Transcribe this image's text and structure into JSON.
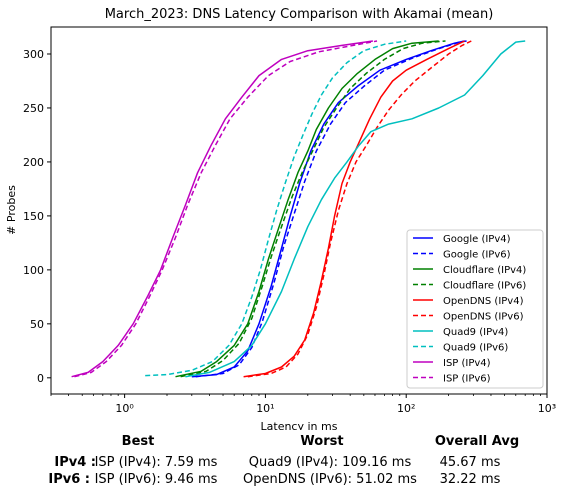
{
  "chart_data": {
    "type": "line",
    "title": "March_2023: DNS Latency Comparison with Akamai (mean)",
    "xlabel": "Latency in ms",
    "ylabel": "# Probes",
    "xscale": "log",
    "xlim": [
      0.3,
      1000
    ],
    "ylim": [
      -15,
      325
    ],
    "xticks": [
      1,
      10,
      100,
      1000
    ],
    "xtick_labels": [
      "10⁰",
      "10¹",
      "10²",
      "10³"
    ],
    "yticks": [
      0,
      50,
      100,
      150,
      200,
      250,
      300
    ],
    "grid": false,
    "legend_position": "lower-right",
    "series": [
      {
        "name": "Google (IPv4)",
        "color": "#0000ff",
        "dash": "solid",
        "points": [
          [
            3,
            1
          ],
          [
            4.5,
            3
          ],
          [
            6,
            10
          ],
          [
            7.5,
            25
          ],
          [
            9,
            50
          ],
          [
            11,
            85
          ],
          [
            13,
            120
          ],
          [
            15,
            150
          ],
          [
            17.5,
            180
          ],
          [
            21,
            210
          ],
          [
            26,
            235
          ],
          [
            33,
            255
          ],
          [
            45,
            270
          ],
          [
            65,
            285
          ],
          [
            100,
            295
          ],
          [
            150,
            303
          ],
          [
            220,
            310
          ],
          [
            260,
            312
          ]
        ]
      },
      {
        "name": "Google (IPv6)",
        "color": "#0000ff",
        "dash": "dashed",
        "points": [
          [
            3.2,
            1
          ],
          [
            5,
            4
          ],
          [
            6.5,
            12
          ],
          [
            8,
            28
          ],
          [
            9.5,
            52
          ],
          [
            11.5,
            88
          ],
          [
            13.5,
            122
          ],
          [
            16,
            152
          ],
          [
            19,
            182
          ],
          [
            23,
            210
          ],
          [
            29,
            235
          ],
          [
            37,
            255
          ],
          [
            50,
            270
          ],
          [
            70,
            285
          ],
          [
            110,
            296
          ],
          [
            170,
            305
          ],
          [
            240,
            311
          ],
          [
            270,
            312
          ]
        ]
      },
      {
        "name": "Cloudflare (IPv4)",
        "color": "#008000",
        "dash": "solid",
        "points": [
          [
            2.3,
            1
          ],
          [
            3.5,
            6
          ],
          [
            4.5,
            15
          ],
          [
            6,
            30
          ],
          [
            7.5,
            50
          ],
          [
            9,
            80
          ],
          [
            10.5,
            110
          ],
          [
            12.5,
            140
          ],
          [
            14.5,
            165
          ],
          [
            17,
            190
          ],
          [
            20,
            210
          ],
          [
            23,
            230
          ],
          [
            28,
            250
          ],
          [
            35,
            268
          ],
          [
            45,
            282
          ],
          [
            60,
            295
          ],
          [
            80,
            305
          ],
          [
            110,
            310
          ],
          [
            170,
            312
          ]
        ]
      },
      {
        "name": "Cloudflare (IPv6)",
        "color": "#008000",
        "dash": "dashed",
        "points": [
          [
            2.5,
            1
          ],
          [
            3.8,
            6
          ],
          [
            5,
            16
          ],
          [
            6.5,
            32
          ],
          [
            8,
            55
          ],
          [
            9.5,
            85
          ],
          [
            11,
            112
          ],
          [
            13,
            140
          ],
          [
            15.5,
            168
          ],
          [
            18.5,
            192
          ],
          [
            22,
            212
          ],
          [
            26,
            232
          ],
          [
            32,
            250
          ],
          [
            40,
            268
          ],
          [
            52,
            282
          ],
          [
            70,
            295
          ],
          [
            95,
            305
          ],
          [
            130,
            310
          ],
          [
            190,
            312
          ]
        ]
      },
      {
        "name": "OpenDNS (IPv4)",
        "color": "#ff0000",
        "dash": "solid",
        "points": [
          [
            7,
            1
          ],
          [
            10,
            4
          ],
          [
            13,
            10
          ],
          [
            16,
            20
          ],
          [
            19,
            35
          ],
          [
            22,
            60
          ],
          [
            25,
            90
          ],
          [
            28,
            120
          ],
          [
            31,
            150
          ],
          [
            35,
            180
          ],
          [
            40,
            200
          ],
          [
            47,
            220
          ],
          [
            55,
            240
          ],
          [
            66,
            260
          ],
          [
            80,
            275
          ],
          [
            100,
            285
          ],
          [
            140,
            295
          ],
          [
            200,
            305
          ],
          [
            260,
            312
          ]
        ]
      },
      {
        "name": "OpenDNS (IPv6)",
        "color": "#ff0000",
        "dash": "dashed",
        "points": [
          [
            7.5,
            1
          ],
          [
            11,
            4
          ],
          [
            14,
            10
          ],
          [
            17,
            22
          ],
          [
            20,
            40
          ],
          [
            23,
            65
          ],
          [
            26,
            95
          ],
          [
            29,
            125
          ],
          [
            33,
            155
          ],
          [
            38,
            180
          ],
          [
            44,
            200
          ],
          [
            52,
            215
          ],
          [
            62,
            232
          ],
          [
            75,
            248
          ],
          [
            92,
            262
          ],
          [
            115,
            275
          ],
          [
            150,
            287
          ],
          [
            200,
            300
          ],
          [
            250,
            308
          ],
          [
            290,
            312
          ]
        ]
      },
      {
        "name": "Quad9 (IPv4)",
        "color": "#00bfbf",
        "dash": "solid",
        "points": [
          [
            2.7,
            1
          ],
          [
            4,
            5
          ],
          [
            6,
            15
          ],
          [
            8,
            30
          ],
          [
            10,
            50
          ],
          [
            13,
            80
          ],
          [
            16,
            110
          ],
          [
            20,
            140
          ],
          [
            25,
            165
          ],
          [
            31,
            185
          ],
          [
            38,
            200
          ],
          [
            46,
            215
          ],
          [
            56,
            228
          ],
          [
            75,
            235
          ],
          [
            110,
            240
          ],
          [
            170,
            250
          ],
          [
            260,
            262
          ],
          [
            350,
            280
          ],
          [
            470,
            300
          ],
          [
            600,
            311
          ],
          [
            700,
            312
          ]
        ]
      },
      {
        "name": "Quad9 (IPv6)",
        "color": "#00bfbf",
        "dash": "dashed",
        "points": [
          [
            1.4,
            2
          ],
          [
            2,
            3
          ],
          [
            3,
            7
          ],
          [
            4.2,
            15
          ],
          [
            5.5,
            30
          ],
          [
            6.8,
            50
          ],
          [
            8,
            75
          ],
          [
            9.2,
            100
          ],
          [
            10.5,
            128
          ],
          [
            12,
            155
          ],
          [
            13.8,
            180
          ],
          [
            16,
            205
          ],
          [
            18.5,
            225
          ],
          [
            21.5,
            245
          ],
          [
            25,
            262
          ],
          [
            30,
            278
          ],
          [
            38,
            292
          ],
          [
            50,
            303
          ],
          [
            70,
            309
          ],
          [
            100,
            312
          ]
        ]
      },
      {
        "name": "ISP (IPv4)",
        "color": "#bf00bf",
        "dash": "solid",
        "points": [
          [
            0.42,
            1
          ],
          [
            0.55,
            5
          ],
          [
            0.7,
            15
          ],
          [
            0.9,
            30
          ],
          [
            1.15,
            50
          ],
          [
            1.45,
            75
          ],
          [
            1.8,
            100
          ],
          [
            2.2,
            130
          ],
          [
            2.7,
            160
          ],
          [
            3.3,
            190
          ],
          [
            4.1,
            215
          ],
          [
            5.2,
            240
          ],
          [
            6.8,
            260
          ],
          [
            9,
            280
          ],
          [
            13,
            295
          ],
          [
            20,
            303
          ],
          [
            35,
            308
          ],
          [
            58,
            312
          ]
        ]
      },
      {
        "name": "ISP (IPv6)",
        "color": "#bf00bf",
        "dash": "dashed",
        "points": [
          [
            0.44,
            1
          ],
          [
            0.58,
            5
          ],
          [
            0.74,
            15
          ],
          [
            0.95,
            30
          ],
          [
            1.2,
            50
          ],
          [
            1.5,
            75
          ],
          [
            1.85,
            100
          ],
          [
            2.3,
            130
          ],
          [
            2.8,
            160
          ],
          [
            3.5,
            190
          ],
          [
            4.4,
            215
          ],
          [
            5.6,
            240
          ],
          [
            7.5,
            260
          ],
          [
            10.5,
            280
          ],
          [
            15,
            293
          ],
          [
            24,
            302
          ],
          [
            42,
            308
          ],
          [
            62,
            312
          ]
        ]
      }
    ]
  },
  "summary": {
    "headers": {
      "best": "Best",
      "worst": "Worst",
      "avg": "Overall Avg"
    },
    "rows": [
      {
        "label": "IPv4 :",
        "best": "ISP (IPv4): 7.59 ms",
        "worst": "Quad9 (IPv4): 109.16 ms",
        "avg": "45.67 ms"
      },
      {
        "label": "IPv6 :",
        "best": "ISP (IPv6): 9.46 ms",
        "worst": "OpenDNS (IPv6): 51.02 ms",
        "avg": "32.22 ms"
      }
    ]
  }
}
